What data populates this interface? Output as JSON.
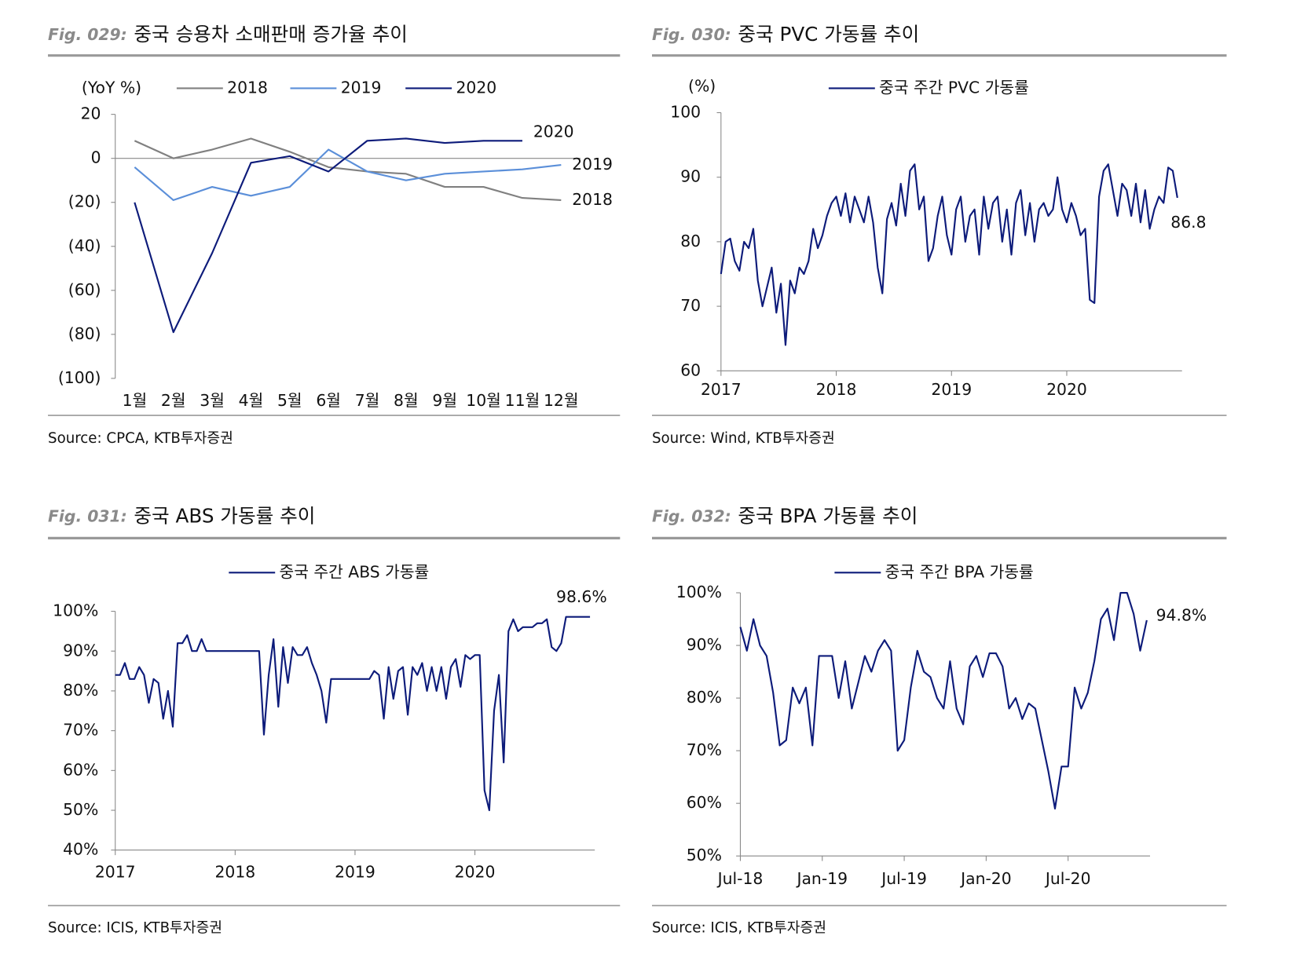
{
  "chart_data": [
    {
      "type": "line",
      "figure": "Fig. 029:",
      "title": "중국 승용차 소매판매 증가율 추이",
      "source": "Source: CPCA, KTB투자증권",
      "y_label": "(YoY %)",
      "categories": [
        "1월",
        "2월",
        "3월",
        "4월",
        "5월",
        "6월",
        "7월",
        "8월",
        "9월",
        "10월",
        "11월",
        "12월"
      ],
      "series": [
        {
          "name": "2018",
          "color": "#808080",
          "values": [
            8,
            0,
            4,
            9,
            3,
            -4,
            -6,
            -7,
            -13,
            -13,
            -18,
            -19
          ]
        },
        {
          "name": "2019",
          "color": "#5b8fd9",
          "values": [
            -4,
            -19,
            -13,
            -17,
            -13,
            4,
            -6,
            -10,
            -7,
            -6,
            -5,
            -3
          ]
        },
        {
          "name": "2020",
          "color": "#0d1b7a",
          "values": [
            -20,
            -79,
            -43,
            -2,
            1,
            -6,
            8,
            9,
            7,
            8,
            8,
            null
          ]
        }
      ],
      "ylim": [
        -100,
        20
      ],
      "yticks": [
        20,
        0,
        {
          "value": -20,
          "label": "(20)"
        },
        {
          "value": -40,
          "label": "(40)"
        },
        {
          "value": -60,
          "label": "(60)"
        },
        {
          "value": -80,
          "label": "(80)"
        },
        {
          "value": -100,
          "label": "(100)"
        }
      ]
    },
    {
      "type": "line",
      "figure": "Fig. 030:",
      "title": "중국 PVC 가동률 추이",
      "source": "Source: Wind, KTB투자증권",
      "y_label": "(%)",
      "x": [
        2017,
        2017.04,
        2017.08,
        2017.12,
        2017.16,
        2017.2,
        2017.24,
        2017.28,
        2017.32,
        2017.36,
        2017.4,
        2017.44,
        2017.48,
        2017.52,
        2017.56,
        2017.6,
        2017.64,
        2017.68,
        2017.72,
        2017.76,
        2017.8,
        2017.84,
        2017.88,
        2017.92,
        2017.96,
        2018,
        2018.04,
        2018.08,
        2018.12,
        2018.16,
        2018.2,
        2018.24,
        2018.28,
        2018.32,
        2018.36,
        2018.4,
        2018.44,
        2018.48,
        2018.52,
        2018.56,
        2018.6,
        2018.64,
        2018.68,
        2018.72,
        2018.76,
        2018.8,
        2018.84,
        2018.88,
        2018.92,
        2018.96,
        2019,
        2019.04,
        2019.08,
        2019.12,
        2019.16,
        2019.2,
        2019.24,
        2019.28,
        2019.32,
        2019.36,
        2019.4,
        2019.44,
        2019.48,
        2019.52,
        2019.56,
        2019.6,
        2019.64,
        2019.68,
        2019.72,
        2019.76,
        2019.8,
        2019.84,
        2019.88,
        2019.92,
        2019.96,
        2020,
        2020.04,
        2020.08,
        2020.12,
        2020.16,
        2020.2,
        2020.24,
        2020.28,
        2020.32,
        2020.36,
        2020.4,
        2020.44,
        2020.48,
        2020.52,
        2020.56,
        2020.6,
        2020.64,
        2020.68,
        2020.72,
        2020.76,
        2020.8,
        2020.84,
        2020.88,
        2020.92,
        2020.96
      ],
      "series": [
        {
          "name": "중국 주간 PVC 가동률",
          "color": "#0d1b7a",
          "values": [
            75,
            80,
            80.5,
            77,
            75.5,
            80,
            79,
            82,
            74,
            70,
            73,
            76,
            69,
            73.5,
            64,
            74,
            72,
            76,
            75,
            77,
            82,
            79,
            81,
            84,
            86,
            87,
            84,
            87.5,
            83,
            87,
            85,
            83,
            87,
            83,
            76,
            72,
            83.5,
            86,
            82.5,
            89,
            84,
            91,
            92,
            85,
            87,
            77,
            79,
            84,
            87,
            81,
            78,
            85,
            87,
            80,
            84,
            85,
            78,
            87,
            82,
            86,
            87,
            80,
            85,
            78,
            86,
            88,
            81,
            86,
            80,
            85,
            86,
            84,
            85,
            90,
            85,
            83,
            86,
            84,
            81,
            82,
            71,
            70.5,
            87,
            91,
            92,
            88,
            84,
            89,
            88,
            84,
            89,
            83,
            88,
            82,
            85,
            87,
            86,
            91.5,
            91,
            86.8
          ]
        }
      ],
      "xlim": [
        2017,
        2021
      ],
      "xticks": [
        2017,
        2018,
        2019,
        2020
      ],
      "ylim": [
        60,
        100
      ],
      "yticks": [
        60,
        70,
        80,
        90,
        100
      ],
      "annotations": [
        {
          "text": "86.8"
        }
      ]
    },
    {
      "type": "line",
      "figure": "Fig. 031:",
      "title": "중국 ABS 가동률 추이",
      "source": "Source: ICIS, KTB투자증권",
      "x": [
        2017,
        2017.04,
        2017.08,
        2017.12,
        2017.16,
        2017.2,
        2017.24,
        2017.28,
        2017.32,
        2017.36,
        2017.4,
        2017.44,
        2017.48,
        2017.52,
        2017.56,
        2017.6,
        2017.64,
        2017.68,
        2017.72,
        2017.76,
        2017.8,
        2017.84,
        2017.88,
        2017.92,
        2017.96,
        2018,
        2018.04,
        2018.08,
        2018.12,
        2018.16,
        2018.2,
        2018.24,
        2018.28,
        2018.32,
        2018.36,
        2018.4,
        2018.44,
        2018.48,
        2018.52,
        2018.56,
        2018.6,
        2018.64,
        2018.68,
        2018.72,
        2018.76,
        2018.8,
        2018.84,
        2018.88,
        2018.92,
        2018.96,
        2019,
        2019.04,
        2019.08,
        2019.12,
        2019.16,
        2019.2,
        2019.24,
        2019.28,
        2019.32,
        2019.36,
        2019.4,
        2019.44,
        2019.48,
        2019.52,
        2019.56,
        2019.6,
        2019.64,
        2019.68,
        2019.72,
        2019.76,
        2019.8,
        2019.84,
        2019.88,
        2019.92,
        2019.96,
        2020,
        2020.04,
        2020.08,
        2020.12,
        2020.16,
        2020.2,
        2020.24,
        2020.28,
        2020.32,
        2020.36,
        2020.4,
        2020.44,
        2020.48,
        2020.52,
        2020.56,
        2020.6,
        2020.64,
        2020.68,
        2020.72,
        2020.76,
        2020.8,
        2020.84,
        2020.88,
        2020.92,
        2020.96
      ],
      "series": [
        {
          "name": "중국 주간 ABS 가동률",
          "color": "#0d1b7a",
          "values": [
            84,
            84,
            87,
            83,
            83,
            86,
            84,
            77,
            83,
            82,
            73,
            80,
            71,
            92,
            92,
            94,
            90,
            90,
            93,
            90,
            90,
            90,
            90,
            90,
            90,
            90,
            90,
            90,
            90,
            90,
            90,
            69,
            84,
            93,
            76,
            91,
            82,
            91,
            89,
            89,
            91,
            87,
            84,
            80,
            72,
            83,
            83,
            83,
            83,
            83,
            83,
            83,
            83,
            83,
            85,
            84,
            73,
            86,
            78,
            85,
            86,
            74,
            86,
            84,
            87,
            80,
            86,
            80,
            86,
            78,
            86,
            88,
            81,
            89,
            88,
            89,
            89,
            55,
            50,
            75,
            84,
            62,
            95,
            98,
            95,
            96,
            96,
            96,
            97,
            97,
            98,
            91,
            90,
            92,
            98.6,
            98.6,
            98.6,
            98.6,
            98.6,
            98.6
          ]
        }
      ],
      "xlim": [
        2017,
        2021
      ],
      "xticks": [
        2017,
        2018,
        2019,
        2020
      ],
      "ylim": [
        40,
        100
      ],
      "yticks": [
        {
          "value": 40,
          "label": "40%"
        },
        {
          "value": 50,
          "label": "50%"
        },
        {
          "value": 60,
          "label": "60%"
        },
        {
          "value": 70,
          "label": "70%"
        },
        {
          "value": 80,
          "label": "80%"
        },
        {
          "value": 90,
          "label": "90%"
        },
        {
          "value": 100,
          "label": "100%"
        }
      ],
      "annotations": [
        {
          "text": "98.6%"
        }
      ]
    },
    {
      "type": "line",
      "figure": "Fig. 032:",
      "title": "중국 BPA 가동률 추이",
      "source": "Source: ICIS, KTB투자증권",
      "x": [
        2018.5,
        2018.54,
        2018.58,
        2018.62,
        2018.66,
        2018.7,
        2018.74,
        2018.78,
        2018.82,
        2018.86,
        2018.9,
        2018.94,
        2018.98,
        2019.02,
        2019.06,
        2019.1,
        2019.14,
        2019.18,
        2019.22,
        2019.26,
        2019.3,
        2019.34,
        2019.38,
        2019.42,
        2019.46,
        2019.5,
        2019.54,
        2019.58,
        2019.62,
        2019.66,
        2019.7,
        2019.74,
        2019.78,
        2019.82,
        2019.86,
        2019.9,
        2019.94,
        2019.98,
        2020.02,
        2020.06,
        2020.1,
        2020.14,
        2020.18,
        2020.22,
        2020.26,
        2020.3,
        2020.34,
        2020.38,
        2020.42,
        2020.46,
        2020.5,
        2020.54,
        2020.58,
        2020.62,
        2020.66,
        2020.7,
        2020.74,
        2020.78,
        2020.82,
        2020.86,
        2020.9,
        2020.94,
        2020.98
      ],
      "series": [
        {
          "name": "중국 주간 BPA 가동률",
          "color": "#0d1b7a",
          "values": [
            93.5,
            89,
            95,
            90,
            88,
            81,
            71,
            72,
            82,
            79,
            82,
            71,
            88,
            88,
            88,
            80,
            87,
            78,
            83,
            88,
            85,
            89,
            91,
            89,
            70,
            72,
            82,
            89,
            85,
            84,
            80,
            78,
            87,
            78,
            75,
            86,
            88,
            84,
            88.5,
            88.5,
            86,
            78,
            80,
            76,
            79,
            78,
            72,
            66,
            59,
            67,
            67,
            82,
            78,
            81,
            87,
            95,
            97,
            91,
            100,
            100,
            96,
            89,
            94.8
          ]
        }
      ],
      "xlim": [
        2018.5,
        2021
      ],
      "xticks": [
        {
          "value": 2018.5,
          "label": "Jul-18"
        },
        {
          "value": 2019,
          "label": "Jan-19"
        },
        {
          "value": 2019.5,
          "label": "Jul-19"
        },
        {
          "value": 2020,
          "label": "Jan-20"
        },
        {
          "value": 2020.5,
          "label": "Jul-20"
        }
      ],
      "ylim": [
        50,
        100
      ],
      "yticks": [
        {
          "value": 50,
          "label": "50%"
        },
        {
          "value": 60,
          "label": "60%"
        },
        {
          "value": 70,
          "label": "70%"
        },
        {
          "value": 80,
          "label": "80%"
        },
        {
          "value": 90,
          "label": "90%"
        },
        {
          "value": 100,
          "label": "100%"
        }
      ],
      "annotations": [
        {
          "text": "94.8%"
        }
      ]
    }
  ]
}
